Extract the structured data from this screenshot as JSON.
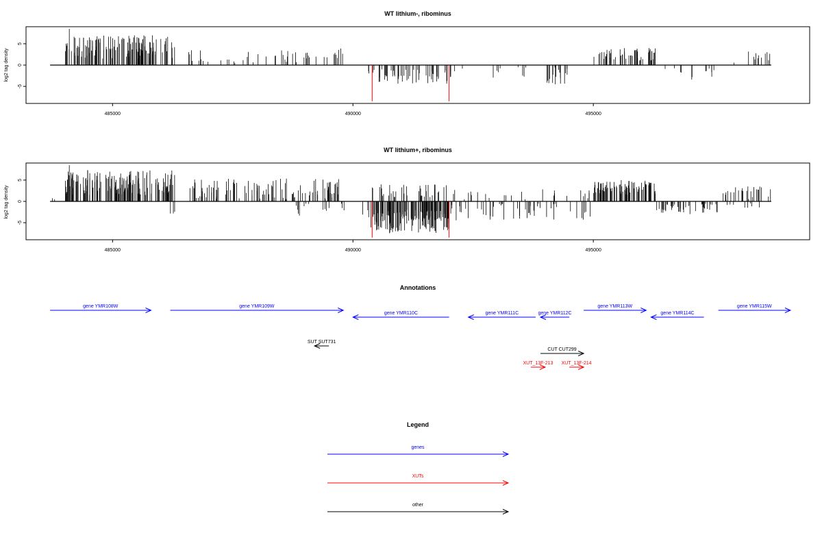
{
  "chart_data": [
    {
      "type": "bar",
      "title": "WT lithium-, ribominus",
      "xlabel": "",
      "ylabel": "log2 tag density",
      "xlim": [
        483200,
        499500
      ],
      "ylim": [
        -9,
        9
      ],
      "xticks": [
        485000,
        490000,
        495000
      ],
      "xtick_labels": [
        "485000",
        "490000",
        "495000"
      ],
      "yticks": [
        -5,
        0,
        5
      ],
      "ytick_labels": [
        "-5",
        "0",
        "5"
      ],
      "baseline_range": [
        483700,
        498700
      ],
      "outliers": [
        {
          "x": 490400,
          "y": -8.5
        },
        {
          "x": 492000,
          "y": -8.5
        }
      ],
      "outlier_color": "#ff0000",
      "segments": [
        {
          "start": 484000,
          "end": 486300,
          "sign": 1,
          "min": 1.5,
          "max": 7,
          "density": 140,
          "peak": {
            "x": 484100,
            "y": 8.5
          }
        },
        {
          "start": 486500,
          "end": 489700,
          "sign": 1,
          "min": 0.5,
          "max": 3.5,
          "density": 45
        },
        {
          "start": 489700,
          "end": 489800,
          "sign": 1,
          "min": 2.5,
          "max": 4,
          "density": 3
        },
        {
          "start": 490300,
          "end": 492100,
          "sign": -1,
          "min": 1,
          "max": 4.5,
          "density": 55
        },
        {
          "start": 492100,
          "end": 494600,
          "sign": -1,
          "min": 0.5,
          "max": 3,
          "density": 12
        },
        {
          "start": 494000,
          "end": 494500,
          "sign": -1,
          "min": 1,
          "max": 5,
          "density": 15
        },
        {
          "start": 495000,
          "end": 496300,
          "sign": 1,
          "min": 1,
          "max": 4,
          "density": 55
        },
        {
          "start": 496400,
          "end": 497600,
          "sign": -1,
          "min": 0.5,
          "max": 3.5,
          "density": 12
        },
        {
          "start": 497700,
          "end": 498700,
          "sign": 1,
          "min": 0.5,
          "max": 3.5,
          "density": 12
        }
      ]
    },
    {
      "type": "bar",
      "title": "WT lithium+, ribominus",
      "xlabel": "",
      "ylabel": "log2 tag density",
      "xlim": [
        483200,
        499500
      ],
      "ylim": [
        -9,
        9
      ],
      "xticks": [
        485000,
        490000,
        495000
      ],
      "xtick_labels": [
        "485000",
        "490000",
        "495000"
      ],
      "yticks": [
        -5,
        0,
        5
      ],
      "ytick_labels": [
        "-5",
        "0",
        "5"
      ],
      "baseline_range": [
        483700,
        498700
      ],
      "outliers": [
        {
          "x": 490400,
          "y": -8.5
        },
        {
          "x": 492000,
          "y": -8.5
        }
      ],
      "outlier_color": "#ff0000",
      "segments": [
        {
          "start": 483750,
          "end": 483800,
          "sign": 1,
          "min": 0.5,
          "max": 1,
          "density": 2
        },
        {
          "start": 484000,
          "end": 486300,
          "sign": 1,
          "min": 1.5,
          "max": 7.5,
          "density": 160,
          "peak": {
            "x": 484100,
            "y": 8.5
          }
        },
        {
          "start": 486200,
          "end": 486300,
          "sign": -1,
          "min": 2,
          "max": 3,
          "density": 3
        },
        {
          "start": 486600,
          "end": 489800,
          "sign": 1,
          "min": 0.5,
          "max": 5.5,
          "density": 110
        },
        {
          "start": 488800,
          "end": 490300,
          "sign": -1,
          "min": 0.5,
          "max": 3.5,
          "density": 15
        },
        {
          "start": 490300,
          "end": 492000,
          "sign": -1,
          "min": 2,
          "max": 7.5,
          "density": 150
        },
        {
          "start": 490300,
          "end": 492000,
          "sign": 1,
          "min": 1,
          "max": 4,
          "density": 40
        },
        {
          "start": 492000,
          "end": 495000,
          "sign": 1,
          "min": 0.5,
          "max": 3,
          "density": 25
        },
        {
          "start": 492000,
          "end": 495000,
          "sign": -1,
          "min": 0.5,
          "max": 4.5,
          "density": 50
        },
        {
          "start": 495000,
          "end": 496300,
          "sign": 1,
          "min": 1.5,
          "max": 5,
          "density": 90
        },
        {
          "start": 496300,
          "end": 497600,
          "sign": -1,
          "min": 0.5,
          "max": 3,
          "density": 45
        },
        {
          "start": 497700,
          "end": 498700,
          "sign": 1,
          "min": 0.5,
          "max": 3.5,
          "density": 25
        },
        {
          "start": 497700,
          "end": 498700,
          "sign": -1,
          "min": 0.5,
          "max": 1.5,
          "density": 8
        }
      ]
    }
  ],
  "annotations": {
    "title": "Annotations",
    "xlim": [
      483200,
      499500
    ],
    "rows": [
      {
        "label": "gene YMR108W",
        "start": 483700,
        "end": 485800,
        "row": 0,
        "strand": "+",
        "color": "#0000ff"
      },
      {
        "label": "gene YMR109W",
        "start": 486200,
        "end": 489800,
        "row": 0,
        "strand": "+",
        "color": "#0000ff"
      },
      {
        "label": "gene YMR110C",
        "start": 490000,
        "end": 492000,
        "row": 1,
        "strand": "-",
        "color": "#0000ff"
      },
      {
        "label": "gene YMR111C",
        "start": 492400,
        "end": 493800,
        "row": 1,
        "strand": "-",
        "color": "#0000ff"
      },
      {
        "label": "gene YMR112C",
        "start": 493900,
        "end": 494500,
        "row": 1,
        "strand": "-",
        "color": "#0000ff"
      },
      {
        "label": "gene YMR113W",
        "start": 494800,
        "end": 496100,
        "row": 0,
        "strand": "+",
        "color": "#0000ff"
      },
      {
        "label": "gene YMR114C",
        "start": 496200,
        "end": 497300,
        "row": 1,
        "strand": "-",
        "color": "#0000ff"
      },
      {
        "label": "gene YMR115W",
        "start": 497600,
        "end": 499100,
        "row": 0,
        "strand": "+",
        "color": "#0000ff"
      },
      {
        "label": "SUT SUT731",
        "start": 489200,
        "end": 489500,
        "row": 2,
        "strand": "-",
        "color": "#000000"
      },
      {
        "label": "CUT CUT299",
        "start": 493900,
        "end": 494800,
        "row": 3,
        "strand": "+",
        "color": "#000000"
      },
      {
        "label": "XUT_13F-213",
        "start": 493700,
        "end": 494000,
        "row": 4,
        "strand": "+",
        "color": "#ff0000"
      },
      {
        "label": "XUT_13F-214",
        "start": 494500,
        "end": 494800,
        "row": 4,
        "strand": "+",
        "color": "#ff0000"
      }
    ]
  },
  "legend": {
    "title": "Legend",
    "items": [
      {
        "label": "genes",
        "color": "#0000ff"
      },
      {
        "label": "XUTs",
        "color": "#ff0000"
      },
      {
        "label": "other",
        "color": "#000000"
      }
    ]
  }
}
